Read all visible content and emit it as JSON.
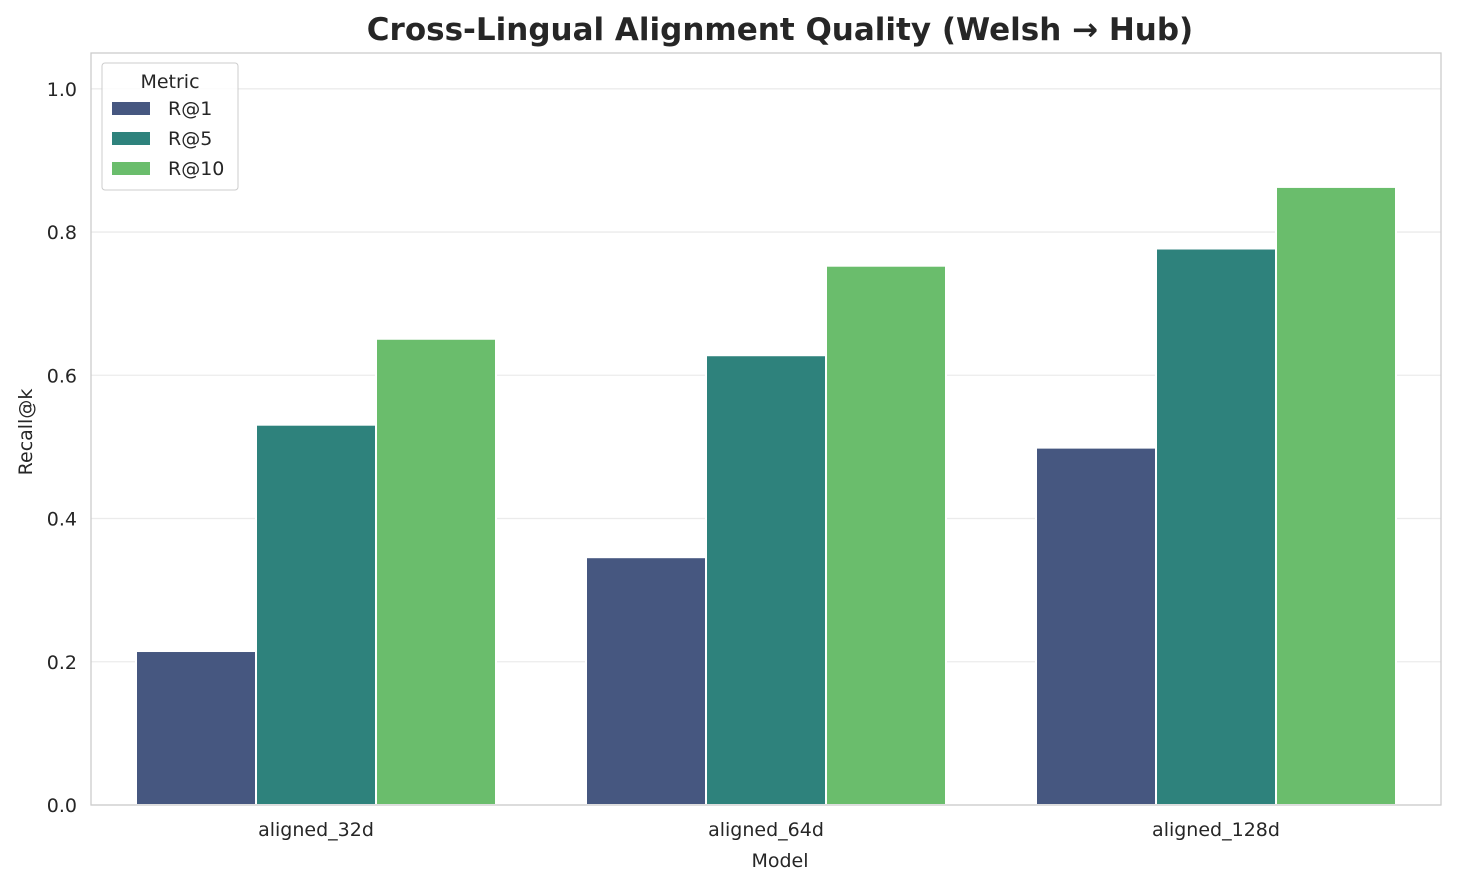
{
  "chart_data": {
    "type": "bar",
    "title": "Cross-Lingual Alignment Quality (Welsh → Hub)",
    "xlabel": "Model",
    "ylabel": "Recall@k",
    "categories": [
      "aligned_32d",
      "aligned_64d",
      "aligned_128d"
    ],
    "series": [
      {
        "name": "R@1",
        "color": "#465780",
        "values": [
          0.215,
          0.346,
          0.499
        ]
      },
      {
        "name": "R@5",
        "color": "#2e827c",
        "values": [
          0.531,
          0.628,
          0.777
        ]
      },
      {
        "name": "R@10",
        "color": "#6abd6c",
        "values": [
          0.651,
          0.753,
          0.863
        ]
      }
    ],
    "ylim": [
      0,
      1.05
    ],
    "yticks": [
      "0.0",
      "0.2",
      "0.4",
      "0.6",
      "0.8",
      "1.0"
    ],
    "grid": "horizontal",
    "legend": {
      "title": "Metric",
      "placement": "top-left"
    }
  }
}
